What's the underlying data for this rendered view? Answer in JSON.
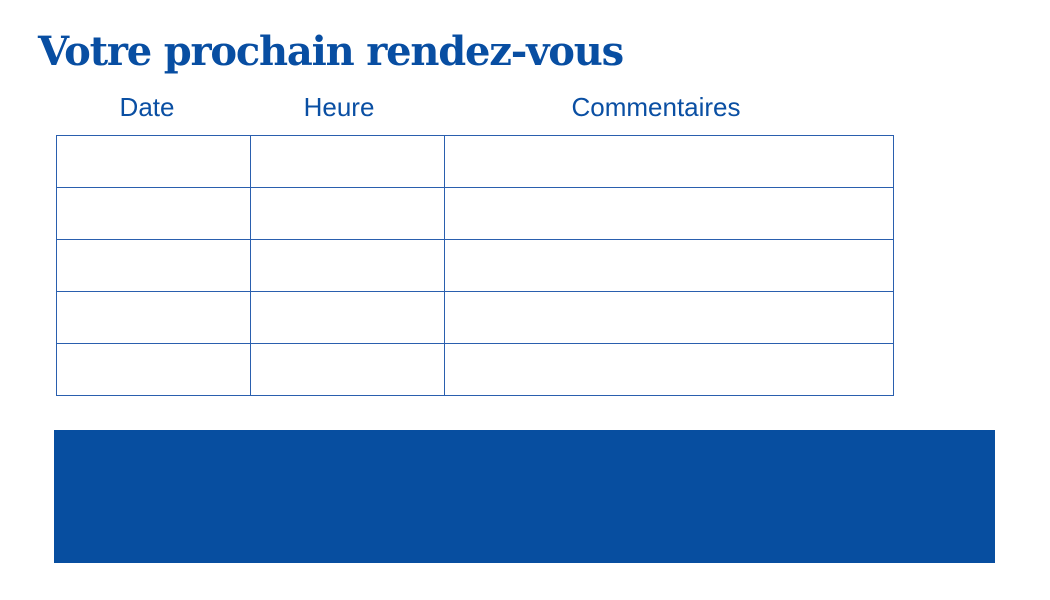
{
  "title": "Votre prochain rendez-vous",
  "table": {
    "columns": [
      "Date",
      "Heure",
      "Commentaires"
    ],
    "rows": [
      [
        "",
        "",
        ""
      ],
      [
        "",
        "",
        ""
      ],
      [
        "",
        "",
        ""
      ],
      [
        "",
        "",
        ""
      ],
      [
        "",
        "",
        ""
      ]
    ]
  },
  "colors": {
    "accent": "#074ea0"
  }
}
